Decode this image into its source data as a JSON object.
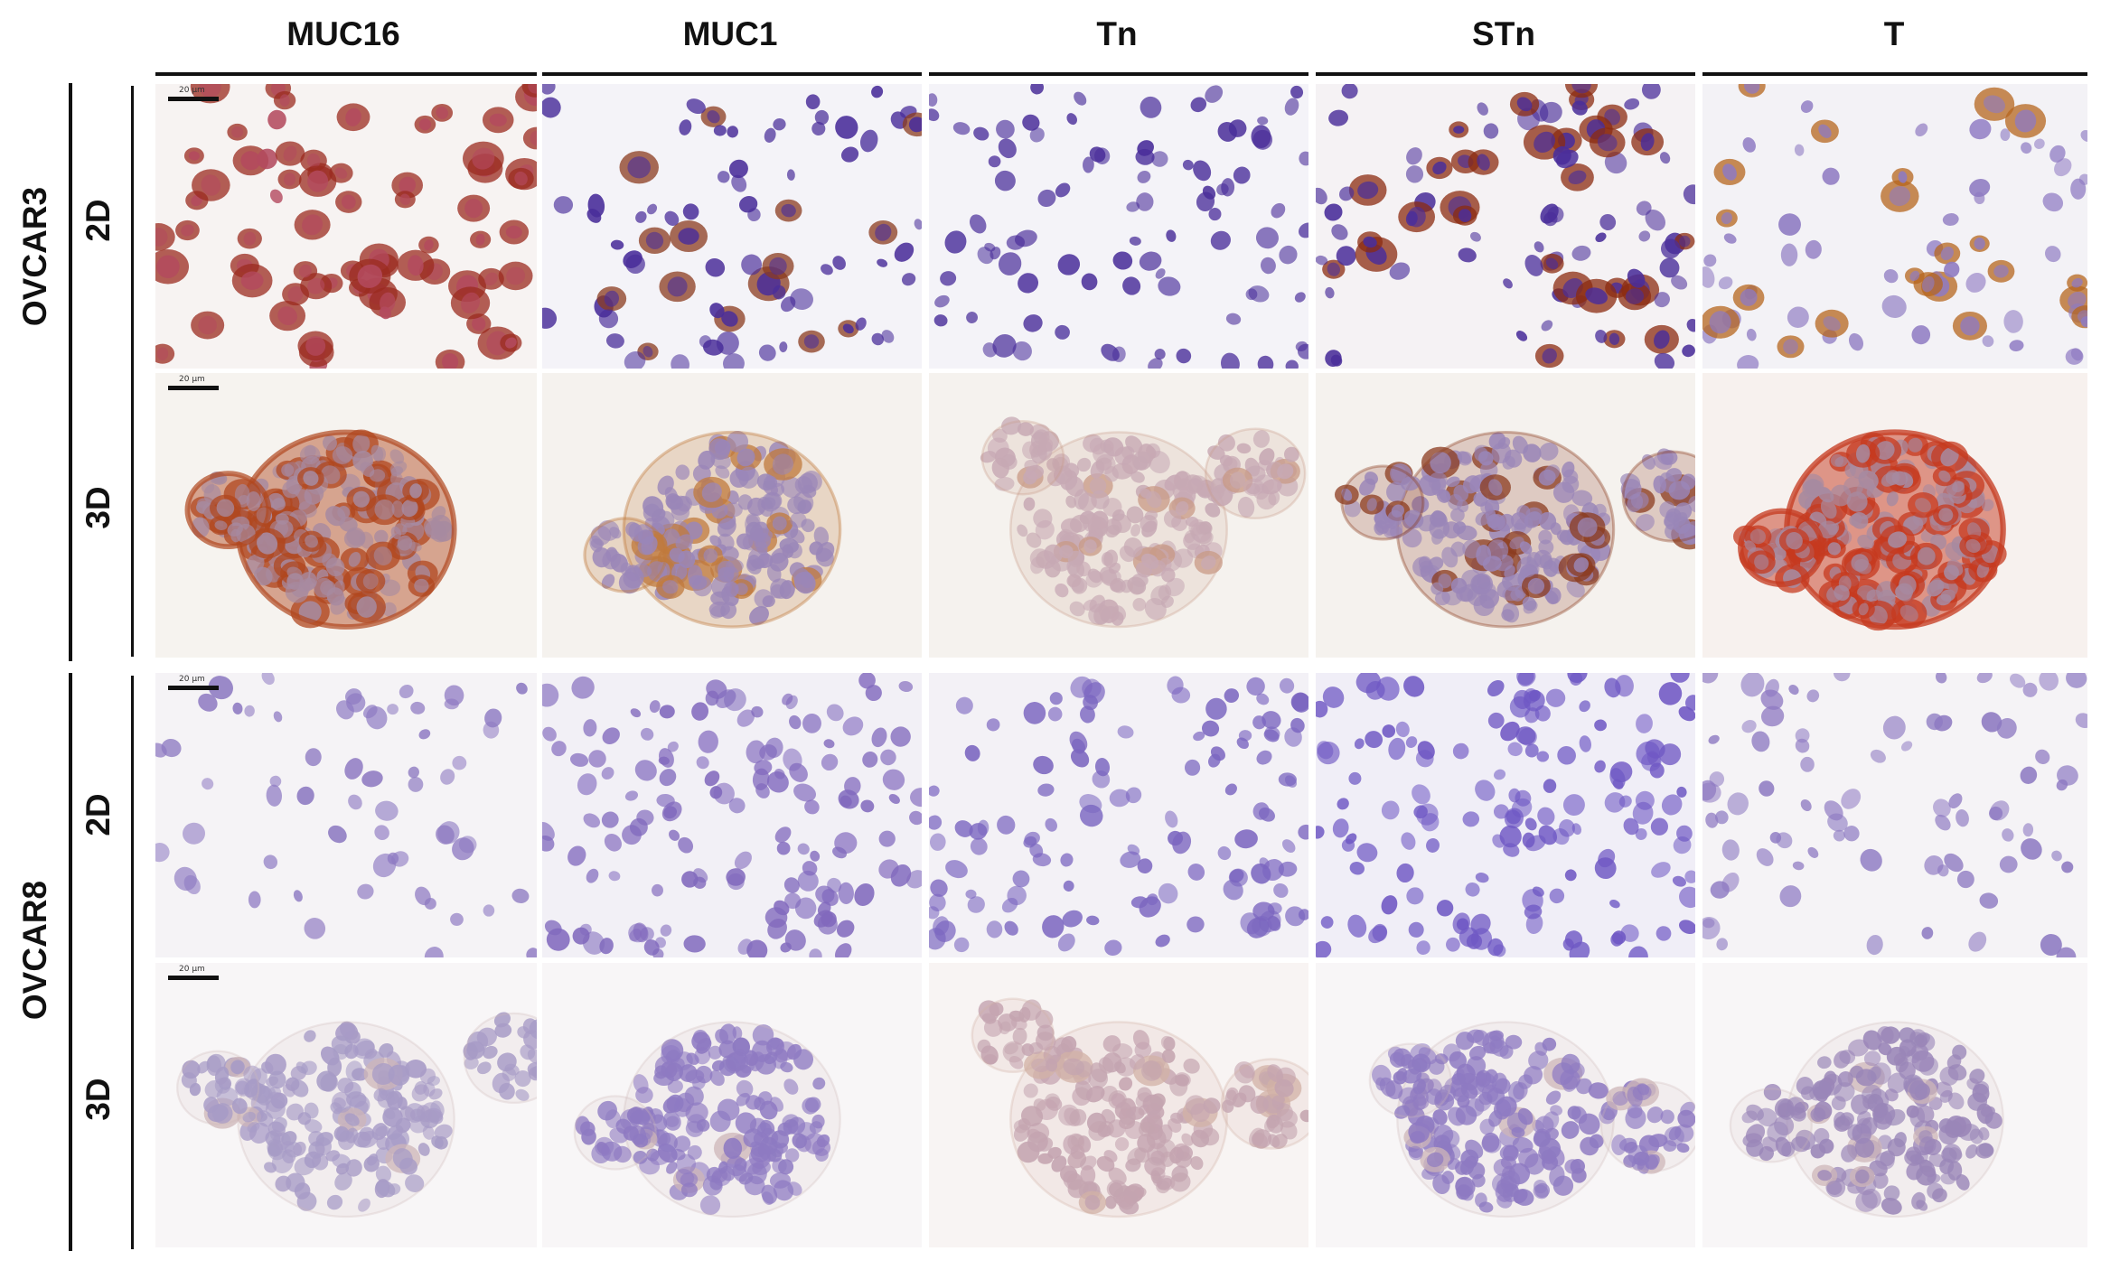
{
  "figure": {
    "columns": [
      "MUC16",
      "MUC1",
      "Tn",
      "STn",
      "T"
    ],
    "groups": [
      {
        "name": "OVCAR3",
        "rows": [
          "2D",
          "3D"
        ]
      },
      {
        "name": "OVCAR8",
        "rows": [
          "2D",
          "3D"
        ]
      }
    ],
    "scale_bar_label": "20 µm"
  },
  "panels": [
    [
      {
        "bg": "#f7f3f2",
        "nucleus": "#b34a5e",
        "stain": "#9b2b1f",
        "stain_level": 0.9,
        "density": 70,
        "cluster": false
      },
      {
        "bg": "#f4f3f8",
        "nucleus": "#4a2e9a",
        "stain": "#8b3b1f",
        "stain_level": 0.15,
        "density": 75,
        "cluster": false
      },
      {
        "bg": "#f4f3f8",
        "nucleus": "#4a2e9a",
        "stain": "#8b3b1f",
        "stain_level": 0.0,
        "density": 90,
        "cluster": false
      },
      {
        "bg": "#f5f2f4",
        "nucleus": "#4a2e9a",
        "stain": "#8b2b10",
        "stain_level": 0.35,
        "density": 90,
        "cluster": false
      },
      {
        "bg": "#f3f2f6",
        "nucleus": "#8e7ac2",
        "stain": "#b5651d",
        "stain_level": 0.3,
        "density": 70,
        "cluster": false
      }
    ],
    [
      {
        "bg": "#f6f3ef",
        "nucleus": "#a78aa0",
        "stain": "#b0471f",
        "stain_level": 0.75,
        "density": 0,
        "cluster": true
      },
      {
        "bg": "#f5f2ee",
        "nucleus": "#9a86b8",
        "stain": "#c07a3c",
        "stain_level": 0.25,
        "density": 0,
        "cluster": true
      },
      {
        "bg": "#f5f2ee",
        "nucleus": "#c7a9b4",
        "stain": "#c89a86",
        "stain_level": 0.1,
        "density": 0,
        "cluster": true
      },
      {
        "bg": "#f5f2ee",
        "nucleus": "#9a86b8",
        "stain": "#8b3b1f",
        "stain_level": 0.2,
        "density": 0,
        "cluster": true
      },
      {
        "bg": "#f7f1ee",
        "nucleus": "#a78aa0",
        "stain": "#c53a1f",
        "stain_level": 0.85,
        "density": 0,
        "cluster": true
      }
    ],
    [
      {
        "bg": "#f5f3f6",
        "nucleus": "#8e7ac2",
        "stain": "#8e7ac2",
        "stain_level": 0.0,
        "density": 60,
        "cluster": false
      },
      {
        "bg": "#f2f0f6",
        "nucleus": "#8169bd",
        "stain": "#8169bd",
        "stain_level": 0.0,
        "density": 140,
        "cluster": false
      },
      {
        "bg": "#f3f1f6",
        "nucleus": "#7b66c0",
        "stain": "#7b66c0",
        "stain_level": 0.0,
        "density": 120,
        "cluster": false
      },
      {
        "bg": "#f0eef7",
        "nucleus": "#6f58c4",
        "stain": "#6f58c4",
        "stain_level": 0.0,
        "density": 150,
        "cluster": false
      },
      {
        "bg": "#f5f3f6",
        "nucleus": "#8e7ac2",
        "stain": "#8e7ac2",
        "stain_level": 0.0,
        "density": 80,
        "cluster": false
      }
    ],
    [
      {
        "bg": "#f8f6f7",
        "nucleus": "#a79bc6",
        "stain": "#cdb6b8",
        "stain_level": 0.05,
        "density": 0,
        "cluster": true
      },
      {
        "bg": "#f8f6f7",
        "nucleus": "#8e7ac2",
        "stain": "#cdb6b8",
        "stain_level": 0.05,
        "density": 0,
        "cluster": true
      },
      {
        "bg": "#f8f4f3",
        "nucleus": "#c4a4b0",
        "stain": "#d2b2a6",
        "stain_level": 0.1,
        "density": 0,
        "cluster": true
      },
      {
        "bg": "#f8f6f7",
        "nucleus": "#8e7ac2",
        "stain": "#cdb6b8",
        "stain_level": 0.05,
        "density": 0,
        "cluster": true
      },
      {
        "bg": "#f8f6f7",
        "nucleus": "#9a86b8",
        "stain": "#cdb6b8",
        "stain_level": 0.05,
        "density": 0,
        "cluster": true
      }
    ]
  ]
}
